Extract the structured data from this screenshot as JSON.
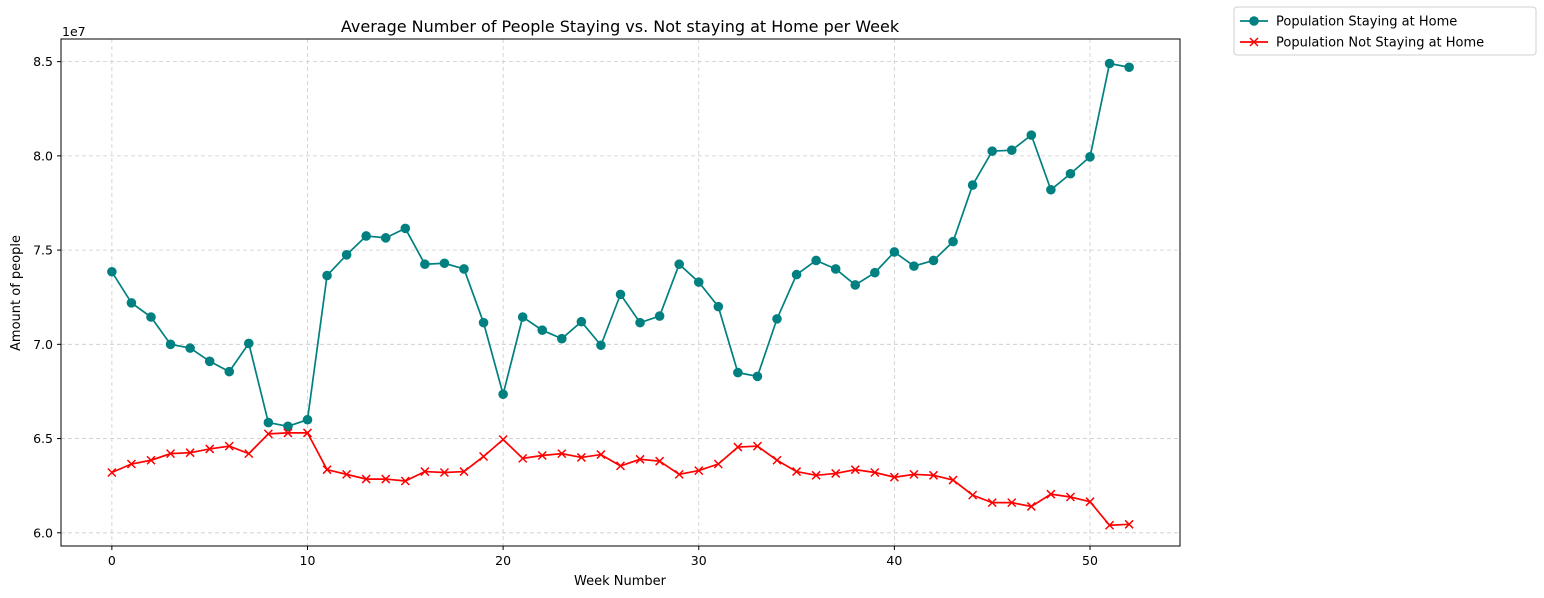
{
  "chart_data": {
    "type": "line",
    "title": "Average Number of People Staying vs. Not staying at Home per Week",
    "xlabel": "Week Number",
    "ylabel": "Amount of people",
    "y_offset_label": "1e7",
    "xlim": [
      -2.6,
      54.6
    ],
    "ylim": [
      5.93,
      8.62
    ],
    "x_ticks": [
      0,
      10,
      20,
      30,
      40,
      50
    ],
    "x_tick_labels": [
      "0",
      "10",
      "20",
      "30",
      "40",
      "50"
    ],
    "y_ticks": [
      6.0,
      6.5,
      7.0,
      7.5,
      8.0,
      8.5
    ],
    "y_tick_labels": [
      "6.0",
      "6.5",
      "7.0",
      "7.5",
      "8.0",
      "8.5"
    ],
    "grid": true,
    "legend_position": "outside-top-right",
    "x": [
      0,
      1,
      2,
      3,
      4,
      5,
      6,
      7,
      8,
      9,
      10,
      11,
      12,
      13,
      14,
      15,
      16,
      17,
      18,
      19,
      20,
      21,
      22,
      23,
      24,
      25,
      26,
      27,
      28,
      29,
      30,
      31,
      32,
      33,
      34,
      35,
      36,
      37,
      38,
      39,
      40,
      41,
      42,
      43,
      44,
      45,
      46,
      47,
      48,
      49,
      50,
      51,
      52
    ],
    "series": [
      {
        "name": "Population Staying at Home",
        "color": "#008080",
        "marker": "circle",
        "values": [
          7.385,
          7.22,
          7.145,
          7.0,
          6.98,
          6.91,
          6.855,
          7.005,
          6.585,
          6.565,
          6.6,
          7.365,
          7.475,
          7.575,
          7.565,
          7.615,
          7.425,
          7.43,
          7.4,
          7.115,
          6.735,
          7.145,
          7.075,
          7.03,
          7.12,
          6.995,
          7.265,
          7.115,
          7.15,
          7.425,
          7.33,
          7.2,
          6.85,
          6.83,
          7.135,
          7.37,
          7.445,
          7.4,
          7.315,
          7.38,
          7.49,
          7.415,
          7.445,
          7.545,
          7.845,
          8.025,
          8.03,
          8.11,
          7.82,
          7.905,
          7.995,
          8.49,
          8.47
        ]
      },
      {
        "name": "Population Not Staying at Home",
        "color": "#ff0000",
        "marker": "x",
        "values": [
          6.32,
          6.365,
          6.385,
          6.42,
          6.425,
          6.445,
          6.46,
          6.42,
          6.525,
          6.53,
          6.53,
          6.335,
          6.31,
          6.285,
          6.285,
          6.275,
          6.325,
          6.32,
          6.325,
          6.405,
          6.495,
          6.395,
          6.41,
          6.42,
          6.4,
          6.415,
          6.355,
          6.39,
          6.38,
          6.31,
          6.33,
          6.365,
          6.455,
          6.46,
          6.385,
          6.325,
          6.305,
          6.315,
          6.335,
          6.32,
          6.295,
          6.31,
          6.305,
          6.28,
          6.2,
          6.16,
          6.16,
          6.14,
          6.205,
          6.19,
          6.165,
          6.04,
          6.045
        ]
      }
    ]
  }
}
